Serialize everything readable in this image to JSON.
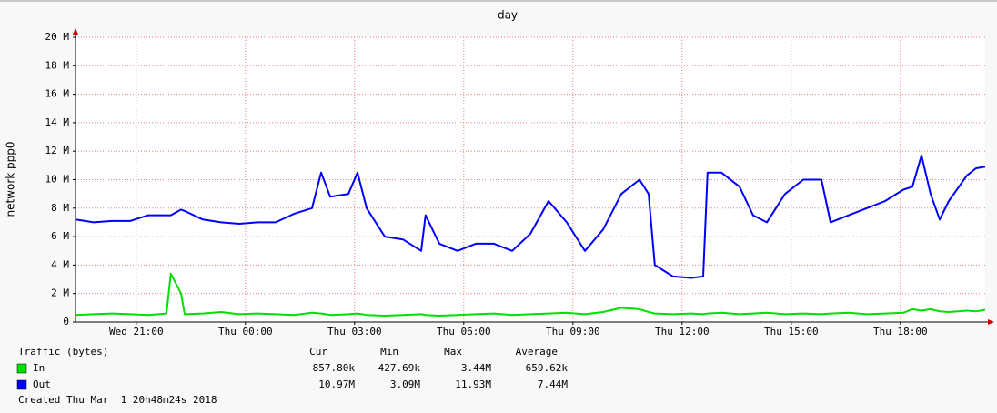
{
  "chart_data": {
    "type": "line",
    "title": "day",
    "y_label": "network ppp0",
    "xlim": [
      19.33,
      44.33
    ],
    "xticks": [
      {
        "value": 21,
        "label": "Wed 21:00"
      },
      {
        "value": 24,
        "label": "Thu 00:00"
      },
      {
        "value": 27,
        "label": "Thu 03:00"
      },
      {
        "value": 30,
        "label": "Thu 06:00"
      },
      {
        "value": 33,
        "label": "Thu 09:00"
      },
      {
        "value": 36,
        "label": "Thu 12:00"
      },
      {
        "value": 39,
        "label": "Thu 15:00"
      },
      {
        "value": 42,
        "label": "Thu 18:00"
      }
    ],
    "ylim": [
      0,
      20000000
    ],
    "yticks": [
      0,
      {
        "value": 2000000,
        "label": "2 M"
      },
      {
        "value": 4000000,
        "label": "4 M"
      },
      {
        "value": 6000000,
        "label": "6 M"
      },
      {
        "value": 8000000,
        "label": "8 M"
      },
      {
        "value": 10000000,
        "label": "10 M"
      },
      {
        "value": 12000000,
        "label": "12 M"
      },
      {
        "value": 14000000,
        "label": "14 M"
      },
      {
        "value": 16000000,
        "label": "16 M"
      },
      {
        "value": 18000000,
        "label": "18 M"
      },
      {
        "value": 20000000,
        "label": "20 M"
      }
    ],
    "grid": true,
    "x": [
      19.33,
      19.83,
      20.33,
      20.83,
      21.33,
      21.83,
      21.95,
      22.23,
      22.33,
      22.83,
      23.33,
      23.83,
      24.33,
      24.83,
      25.33,
      25.83,
      26.08,
      26.33,
      26.83,
      27.08,
      27.33,
      27.83,
      28.33,
      28.83,
      28.95,
      29.33,
      29.83,
      30.33,
      30.83,
      31.33,
      31.83,
      32.33,
      32.83,
      33.33,
      33.83,
      34.33,
      34.83,
      35.08,
      35.25,
      35.75,
      36.25,
      36.58,
      36.7,
      37.08,
      37.58,
      37.95,
      38.33,
      38.83,
      39.33,
      39.83,
      40.08,
      40.58,
      41.08,
      41.58,
      42.08,
      42.33,
      42.58,
      42.83,
      43.08,
      43.33,
      43.83,
      44.08,
      44.33
    ],
    "series": [
      {
        "name": "In",
        "color": "#00e000",
        "stats": [
          "857.80k",
          "427.69k",
          "3.44M",
          "659.62k"
        ],
        "values": [
          500000,
          550000,
          600000,
          550000,
          500000,
          600000,
          3400000,
          2000000,
          550000,
          600000,
          700000,
          550000,
          600000,
          550000,
          500000,
          650000,
          600000,
          500000,
          550000,
          600000,
          500000,
          450000,
          500000,
          550000,
          500000,
          450000,
          500000,
          550000,
          600000,
          500000,
          550000,
          600000,
          650000,
          550000,
          700000,
          1000000,
          900000,
          700000,
          600000,
          550000,
          600000,
          550000,
          600000,
          650000,
          550000,
          600000,
          650000,
          550000,
          600000,
          550000,
          600000,
          650000,
          550000,
          600000,
          650000,
          900000,
          800000,
          900000,
          750000,
          700000,
          800000,
          750000,
          860000
        ]
      },
      {
        "name": "Out",
        "color": "#0000ff",
        "stats": [
          "10.97M",
          "3.09M",
          "11.93M",
          "7.44M"
        ],
        "values": [
          7200000,
          7000000,
          7100000,
          7100000,
          7500000,
          7500000,
          7500000,
          7900000,
          7800000,
          7200000,
          7000000,
          6900000,
          7000000,
          7000000,
          7600000,
          8000000,
          10500000,
          8800000,
          9000000,
          10500000,
          8000000,
          6000000,
          5800000,
          5000000,
          7500000,
          5500000,
          5000000,
          5500000,
          5500000,
          5000000,
          6200000,
          8500000,
          7000000,
          5000000,
          6500000,
          9000000,
          10000000,
          9000000,
          4000000,
          3200000,
          3100000,
          3200000,
          10500000,
          10500000,
          9500000,
          7500000,
          7000000,
          9000000,
          10000000,
          10000000,
          7000000,
          7500000,
          8000000,
          8500000,
          9300000,
          9500000,
          11700000,
          9000000,
          7200000,
          8500000,
          10300000,
          10800000,
          10900000
        ]
      }
    ],
    "legend": {
      "title": "Traffic (bytes)",
      "columns": [
        "Cur",
        "Min",
        "Max",
        "Average"
      ]
    },
    "footer": "Created Thu Mar  1 20h48m24s 2018"
  }
}
